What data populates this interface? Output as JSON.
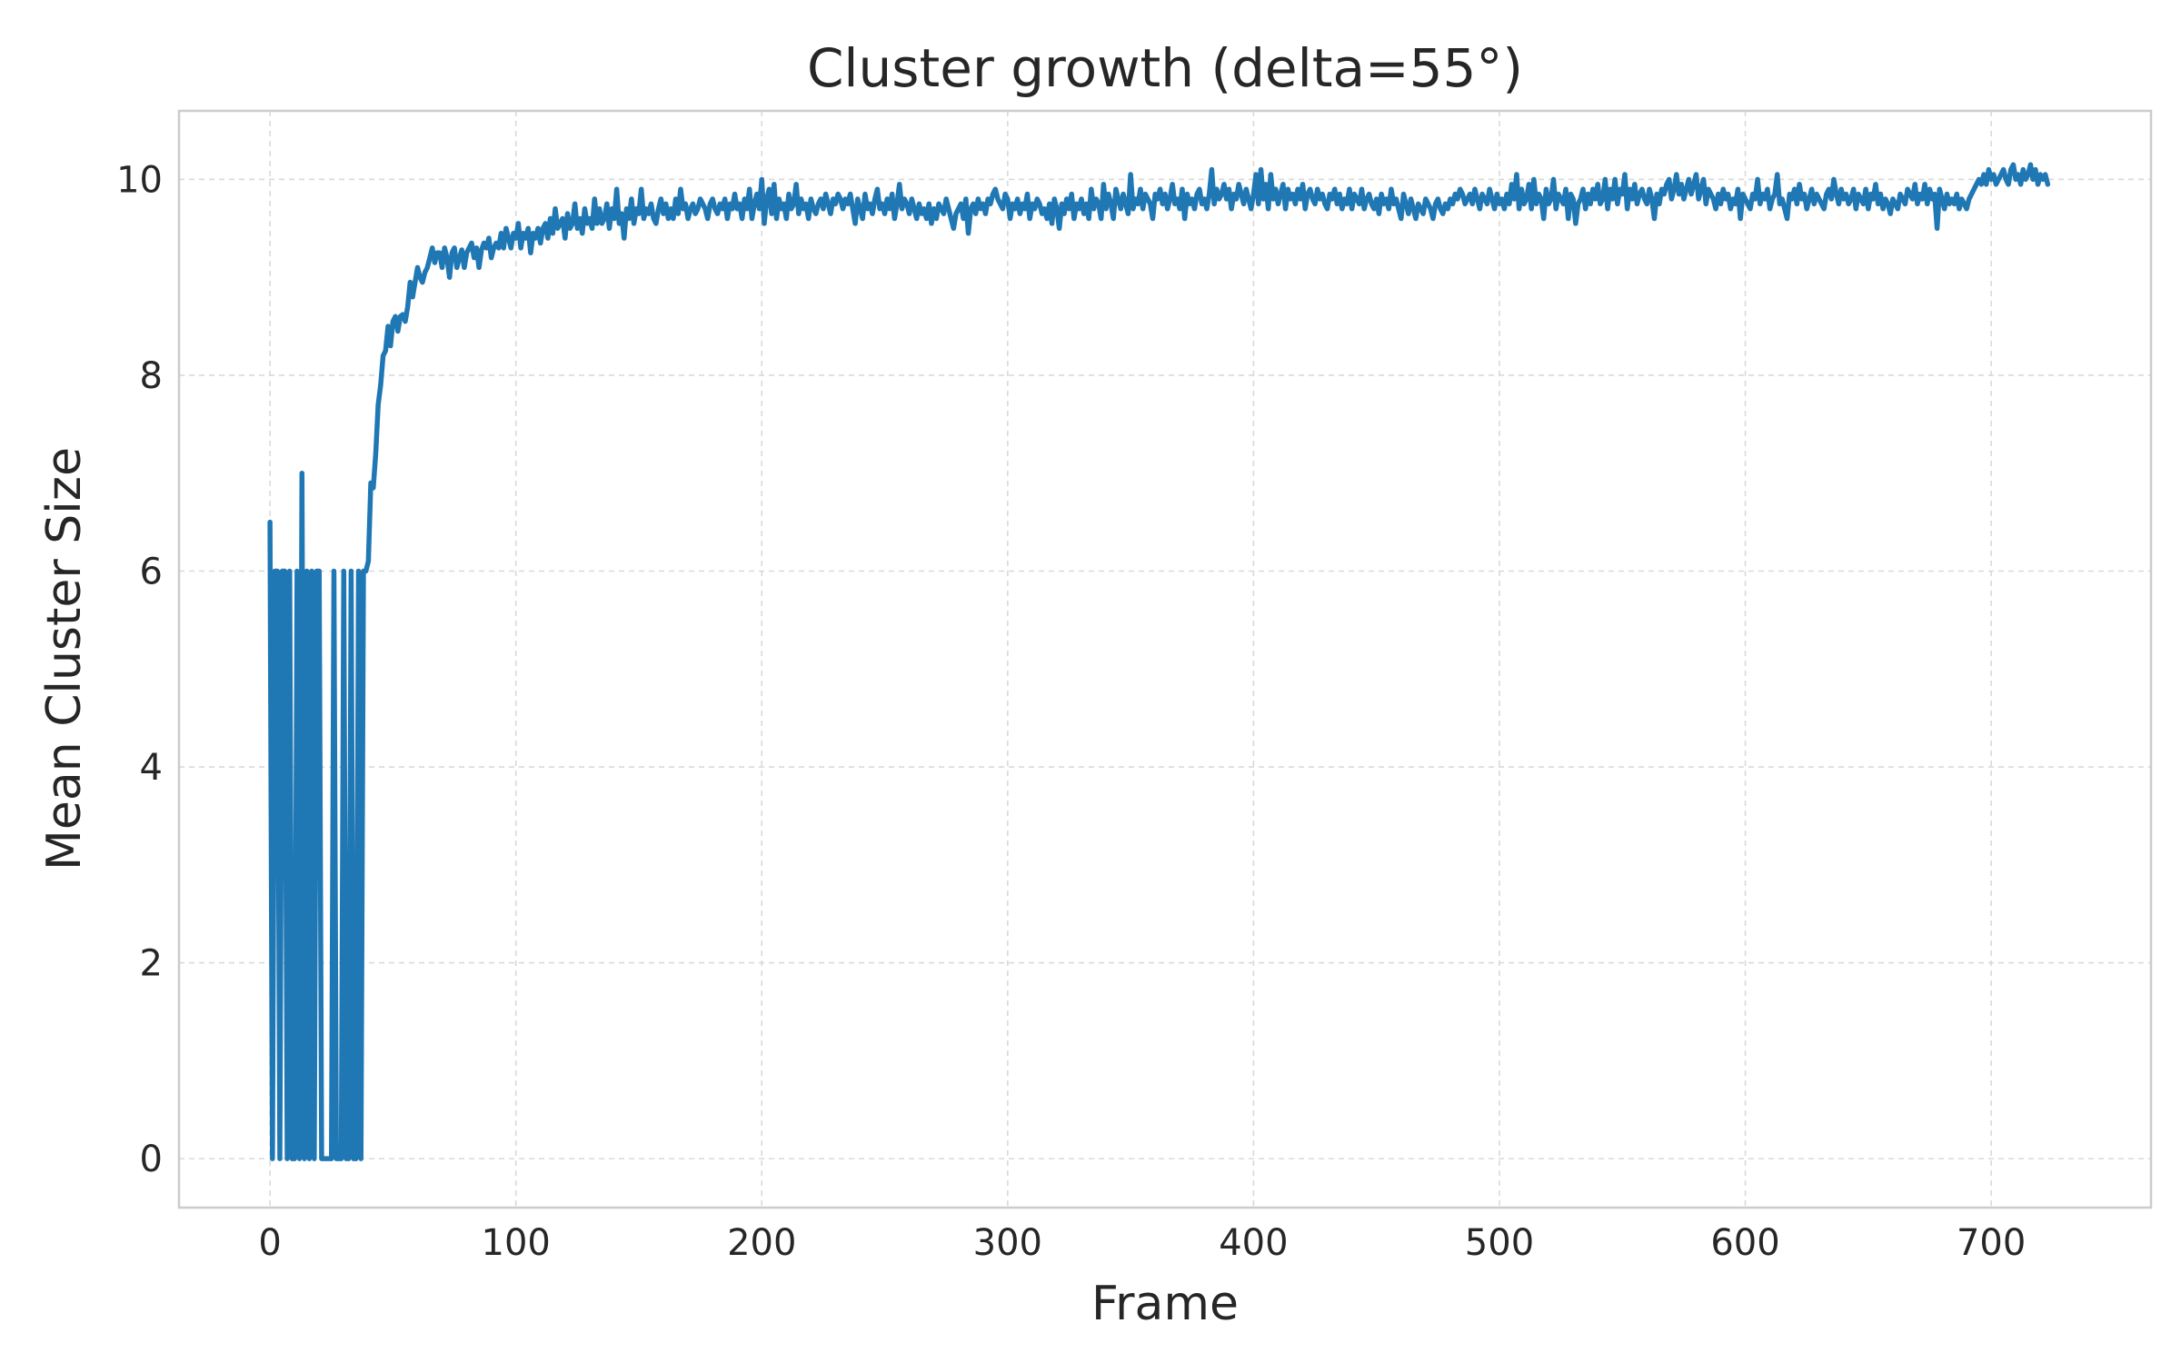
{
  "chart_data": {
    "type": "line",
    "title": "Cluster growth (delta=55°)",
    "xlabel": "Frame",
    "ylabel": "Mean Cluster Size",
    "xlim": [
      -37,
      765
    ],
    "ylim": [
      -0.5,
      10.7
    ],
    "x_ticks": [
      0,
      100,
      200,
      300,
      400,
      500,
      600,
      700
    ],
    "y_ticks": [
      0,
      2,
      4,
      6,
      8,
      10
    ],
    "grid": true,
    "line_color": "#1f77b4",
    "series": [
      {
        "x_start": 0,
        "x_step": 1,
        "values": [
          6.5,
          0,
          6,
          6,
          0,
          6,
          6,
          0,
          6,
          0,
          0,
          6,
          0,
          7,
          0,
          6,
          0,
          6,
          0,
          6,
          6,
          0,
          0,
          0,
          0,
          0,
          6,
          0,
          0,
          0,
          6,
          0,
          0,
          6,
          0,
          0,
          6,
          0,
          6,
          6,
          6.1,
          6.9,
          6.85,
          7.2,
          7.7,
          7.9,
          8.2,
          8.25,
          8.5,
          8.3,
          8.55,
          8.6,
          8.45,
          8.6,
          8.62,
          8.55,
          8.7,
          8.95,
          8.8,
          8.95,
          9.1,
          9.0,
          8.95,
          9.05,
          9.1,
          9.2,
          9.3,
          9.15,
          9.25,
          9.25,
          9.1,
          9.3,
          9.2,
          9.0,
          9.25,
          9.3,
          9.1,
          9.2,
          9.28,
          9.1,
          9.25,
          9.3,
          9.35,
          9.2,
          9.3,
          9.1,
          9.28,
          9.35,
          9.3,
          9.4,
          9.2,
          9.3,
          9.35,
          9.3,
          9.45,
          9.3,
          9.5,
          9.4,
          9.3,
          9.45,
          9.4,
          9.55,
          9.3,
          9.45,
          9.4,
          9.5,
          9.25,
          9.45,
          9.4,
          9.5,
          9.35,
          9.5,
          9.55,
          9.4,
          9.6,
          9.45,
          9.7,
          9.5,
          9.55,
          9.6,
          9.4,
          9.65,
          9.5,
          9.55,
          9.75,
          9.5,
          9.6,
          9.45,
          9.7,
          9.55,
          9.6,
          9.5,
          9.8,
          9.55,
          9.7,
          9.55,
          9.6,
          9.75,
          9.5,
          9.7,
          9.6,
          9.9,
          9.55,
          9.65,
          9.4,
          9.7,
          9.6,
          9.8,
          9.55,
          9.7,
          9.65,
          9.9,
          9.6,
          9.7,
          9.65,
          9.75,
          9.6,
          9.55,
          9.7,
          9.8,
          9.65,
          9.75,
          9.6,
          9.7,
          9.6,
          9.8,
          9.65,
          9.9,
          9.7,
          9.75,
          9.6,
          9.7,
          9.75,
          9.65,
          9.7,
          9.8,
          9.75,
          9.7,
          9.6,
          9.75,
          9.8,
          9.7,
          9.65,
          9.75,
          9.7,
          9.8,
          9.6,
          9.75,
          9.7,
          9.85,
          9.7,
          9.75,
          9.6,
          9.8,
          9.7,
          9.9,
          9.6,
          9.75,
          9.85,
          9.7,
          10.0,
          9.55,
          9.8,
          9.9,
          9.65,
          9.95,
          9.6,
          9.8,
          9.7,
          9.75,
          9.6,
          9.85,
          9.7,
          9.75,
          9.95,
          9.65,
          9.8,
          9.7,
          9.75,
          9.6,
          9.8,
          9.7,
          9.65,
          9.75,
          9.8,
          9.7,
          9.85,
          9.75,
          9.65,
          9.8,
          9.75,
          9.85,
          9.8,
          9.7,
          9.8,
          9.75,
          9.85,
          9.7,
          9.55,
          9.8,
          9.7,
          9.6,
          9.85,
          9.7,
          9.75,
          9.65,
          9.8,
          9.9,
          9.7,
          9.75,
          9.65,
          9.8,
          9.7,
          9.85,
          9.6,
          9.75,
          9.95,
          9.7,
          9.8,
          9.75,
          9.65,
          9.8,
          9.7,
          9.6,
          9.75,
          9.65,
          9.7,
          9.6,
          9.75,
          9.55,
          9.7,
          9.6,
          9.75,
          9.7,
          9.65,
          9.8,
          9.7,
          9.6,
          9.5,
          9.65,
          9.7,
          9.75,
          9.6,
          9.8,
          9.45,
          9.7,
          9.75,
          9.65,
          9.8,
          9.7,
          9.75,
          9.65,
          9.8,
          9.75,
          9.85,
          9.9,
          9.8,
          9.75,
          9.7,
          9.85,
          9.8,
          9.6,
          9.75,
          9.7,
          9.8,
          9.65,
          9.75,
          9.7,
          9.85,
          9.6,
          9.75,
          9.7,
          9.8,
          9.75,
          9.65,
          9.7,
          9.6,
          9.75,
          9.55,
          9.8,
          9.7,
          9.5,
          9.75,
          9.65,
          9.8,
          9.7,
          9.85,
          9.6,
          9.75,
          9.7,
          9.8,
          9.65,
          9.75,
          9.6,
          9.9,
          9.7,
          9.8,
          9.75,
          9.6,
          9.95,
          9.7,
          9.85,
          9.75,
          9.6,
          9.9,
          9.8,
          9.7,
          9.85,
          9.75,
          9.65,
          10.05,
          9.7,
          9.8,
          9.75,
          9.9,
          9.7,
          9.85,
          9.8,
          9.75,
          9.6,
          9.85,
          9.8,
          9.9,
          9.75,
          9.85,
          9.7,
          9.8,
          9.95,
          9.75,
          9.8,
          9.7,
          9.9,
          9.6,
          9.85,
          9.75,
          9.8,
          9.7,
          9.85,
          9.9,
          9.75,
          9.8,
          9.7,
          9.85,
          10.1,
          9.75,
          9.9,
          9.8,
          9.85,
          9.95,
          9.8,
          9.9,
          9.7,
          9.85,
          9.8,
          9.95,
          9.85,
          9.75,
          9.9,
          9.8,
          9.7,
          9.85,
          10.05,
          9.75,
          10.1,
          9.8,
          9.95,
          9.7,
          10.05,
          9.8,
          9.9,
          9.75,
          9.85,
          9.95,
          9.7,
          9.9,
          9.8,
          9.85,
          9.75,
          9.9,
          9.8,
          9.95,
          9.7,
          9.85,
          9.9,
          9.8,
          9.75,
          9.9,
          9.8,
          9.85,
          9.75,
          9.7,
          9.85,
          9.8,
          9.9,
          9.75,
          9.85,
          9.7,
          9.8,
          9.75,
          9.9,
          9.7,
          9.85,
          9.8,
          9.75,
          9.9,
          9.7,
          9.8,
          9.85,
          9.75,
          9.7,
          9.8,
          9.65,
          9.85,
          9.75,
          9.8,
          9.7,
          9.9,
          9.75,
          9.8,
          9.7,
          9.6,
          9.85,
          9.75,
          9.65,
          9.8,
          9.7,
          9.6,
          9.75,
          9.7,
          9.65,
          9.8,
          9.75,
          9.7,
          9.6,
          9.75,
          9.8,
          9.7,
          9.65,
          9.75,
          9.7,
          9.8,
          9.75,
          9.85,
          9.8,
          9.9,
          9.85,
          9.75,
          9.8,
          9.85,
          9.75,
          9.9,
          9.8,
          9.7,
          9.85,
          9.8,
          9.75,
          9.9,
          9.8,
          9.7,
          9.85,
          9.75,
          9.8,
          9.7,
          9.85,
          9.75,
          9.95,
          9.8,
          10.05,
          9.7,
          9.9,
          9.75,
          9.8,
          9.95,
          9.7,
          10.0,
          9.75,
          9.85,
          9.8,
          9.6,
          9.9,
          9.75,
          9.8,
          10.0,
          9.7,
          9.85,
          9.8,
          9.75,
          9.9,
          9.6,
          9.85,
          9.8,
          9.55,
          9.75,
          9.8,
          9.9,
          9.7,
          9.85,
          9.75,
          9.9,
          9.8,
          9.95,
          9.75,
          9.8,
          10.0,
          9.7,
          9.9,
          9.8,
          10.0,
          9.75,
          9.9,
          9.85,
          10.05,
          9.7,
          9.9,
          9.8,
          9.95,
          9.75,
          9.85,
          9.9,
          9.8,
          9.75,
          9.9,
          9.8,
          9.6,
          9.85,
          9.75,
          9.9,
          9.85,
          9.95,
          10.0,
          9.8,
          9.9,
          10.05,
          9.85,
          9.95,
          9.8,
          9.9,
          10.0,
          9.85,
          9.95,
          10.05,
          9.8,
          9.9,
          10.0,
          9.75,
          9.9,
          9.85,
          9.8,
          9.7,
          9.85,
          9.75,
          9.9,
          9.8,
          9.85,
          9.7,
          9.8,
          9.75,
          9.9,
          9.6,
          9.85,
          9.8,
          9.75,
          9.7,
          9.85,
          9.8,
          10.0,
          9.75,
          9.85,
          9.8,
          9.9,
          9.7,
          9.8,
          9.85,
          10.05,
          9.75,
          9.8,
          9.7,
          9.6,
          9.85,
          9.8,
          9.9,
          9.75,
          9.95,
          9.8,
          9.85,
          9.7,
          9.8,
          9.9,
          9.75,
          9.85,
          9.8,
          9.75,
          9.7,
          9.85,
          9.9,
          9.8,
          10.0,
          9.85,
          9.75,
          9.9,
          9.8,
          9.85,
          9.75,
          9.8,
          9.9,
          9.7,
          9.85,
          9.8,
          9.75,
          9.9,
          9.7,
          9.85,
          9.8,
          9.95,
          9.75,
          9.85,
          9.7,
          9.8,
          9.75,
          9.65,
          9.8,
          9.75,
          9.7,
          9.85,
          9.8,
          9.75,
          9.9,
          9.85,
          9.8,
          9.95,
          9.75,
          9.85,
          9.8,
          9.95,
          9.75,
          9.9,
          9.8,
          9.85,
          9.5,
          9.9,
          9.8,
          9.7,
          9.85,
          9.75,
          9.8,
          9.75,
          9.85,
          9.7,
          9.8,
          9.75,
          9.7,
          9.8,
          9.85,
          9.9,
          9.95,
          10.0,
          9.95,
          10.05,
          9.95,
          10.1,
          10.0,
          10.05,
          9.95,
          10.0,
          10.05,
          10.1,
          10.0,
          9.95,
          10.1,
          10.15,
          10.0,
          10.05,
          9.95,
          10.1,
          10.0,
          10.05,
          10.15,
          10.0,
          10.1,
          9.95,
          10.05,
          10.0,
          10.05,
          9.95
        ]
      }
    ]
  }
}
